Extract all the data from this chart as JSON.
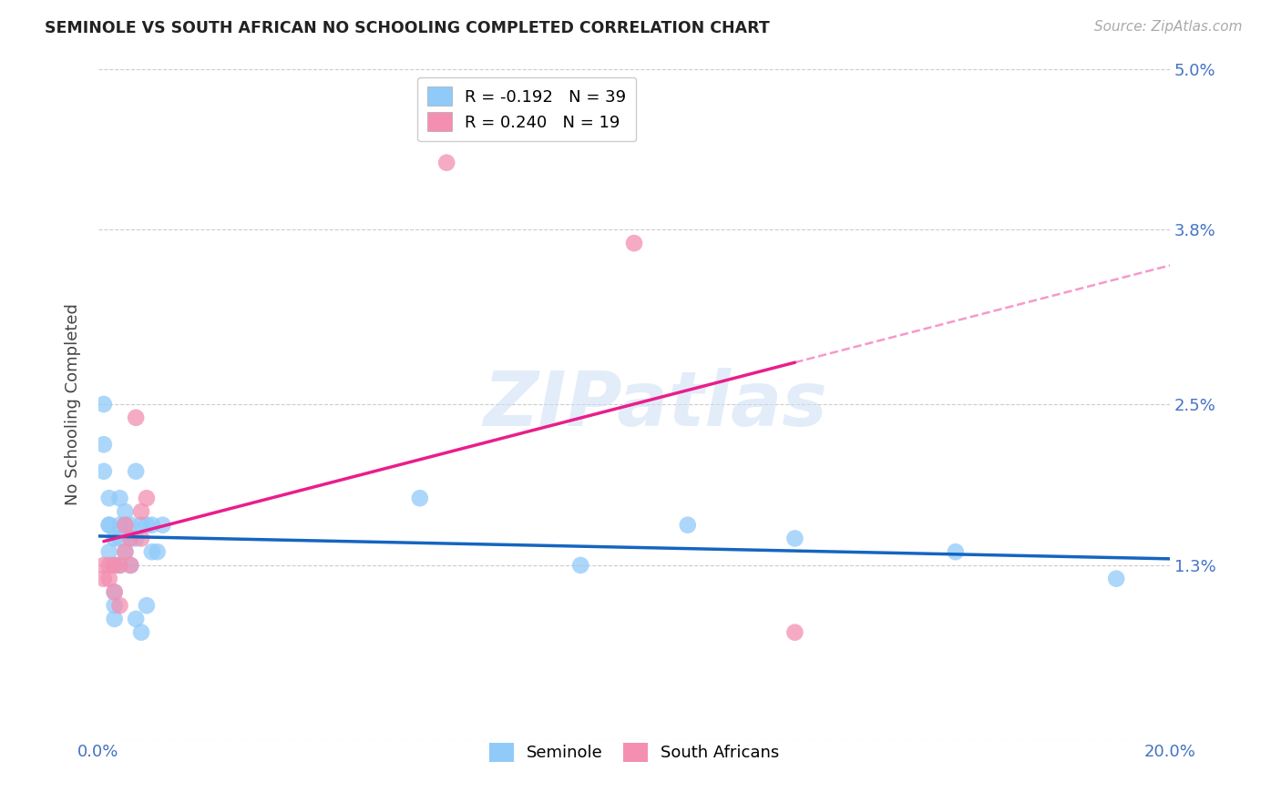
{
  "title": "SEMINOLE VS SOUTH AFRICAN NO SCHOOLING COMPLETED CORRELATION CHART",
  "source": "Source: ZipAtlas.com",
  "ylabel": "No Schooling Completed",
  "xlabel": "",
  "xlim": [
    0.0,
    0.2
  ],
  "ylim": [
    0.0,
    0.05
  ],
  "x_ticks": [
    0.0,
    0.04,
    0.08,
    0.12,
    0.16,
    0.2
  ],
  "x_tick_labels": [
    "0.0%",
    "",
    "",
    "",
    "",
    "20.0%"
  ],
  "y_ticks": [
    0.0,
    0.013,
    0.025,
    0.038,
    0.05
  ],
  "y_tick_labels": [
    "",
    "1.3%",
    "2.5%",
    "3.8%",
    "5.0%"
  ],
  "legend_r_seminole": "-0.192",
  "legend_n_seminole": "39",
  "legend_r_sa": "0.240",
  "legend_n_sa": "19",
  "watermark": "ZIPatlas",
  "color_seminole": "#90CAF9",
  "color_sa": "#F48FB1",
  "color_seminole_line": "#1565C0",
  "color_sa_line": "#E91E8C",
  "background_color": "#ffffff",
  "grid_color": "#cccccc",
  "seminole_x": [
    0.001,
    0.001,
    0.001,
    0.002,
    0.002,
    0.002,
    0.002,
    0.003,
    0.003,
    0.003,
    0.003,
    0.003,
    0.004,
    0.004,
    0.004,
    0.004,
    0.005,
    0.005,
    0.005,
    0.006,
    0.006,
    0.006,
    0.007,
    0.007,
    0.007,
    0.008,
    0.008,
    0.009,
    0.009,
    0.01,
    0.01,
    0.011,
    0.012,
    0.06,
    0.09,
    0.11,
    0.13,
    0.16,
    0.19
  ],
  "seminole_y": [
    0.025,
    0.022,
    0.02,
    0.018,
    0.016,
    0.016,
    0.014,
    0.015,
    0.013,
    0.011,
    0.01,
    0.009,
    0.018,
    0.016,
    0.015,
    0.013,
    0.017,
    0.016,
    0.014,
    0.016,
    0.015,
    0.013,
    0.02,
    0.015,
    0.009,
    0.016,
    0.008,
    0.016,
    0.01,
    0.016,
    0.014,
    0.014,
    0.016,
    0.018,
    0.013,
    0.016,
    0.015,
    0.014,
    0.012
  ],
  "sa_x": [
    0.001,
    0.001,
    0.002,
    0.002,
    0.003,
    0.003,
    0.004,
    0.004,
    0.005,
    0.005,
    0.006,
    0.006,
    0.007,
    0.008,
    0.008,
    0.009,
    0.065,
    0.1,
    0.13
  ],
  "sa_y": [
    0.013,
    0.012,
    0.013,
    0.012,
    0.013,
    0.011,
    0.013,
    0.01,
    0.016,
    0.014,
    0.015,
    0.013,
    0.024,
    0.017,
    0.015,
    0.018,
    0.043,
    0.037,
    0.008
  ]
}
